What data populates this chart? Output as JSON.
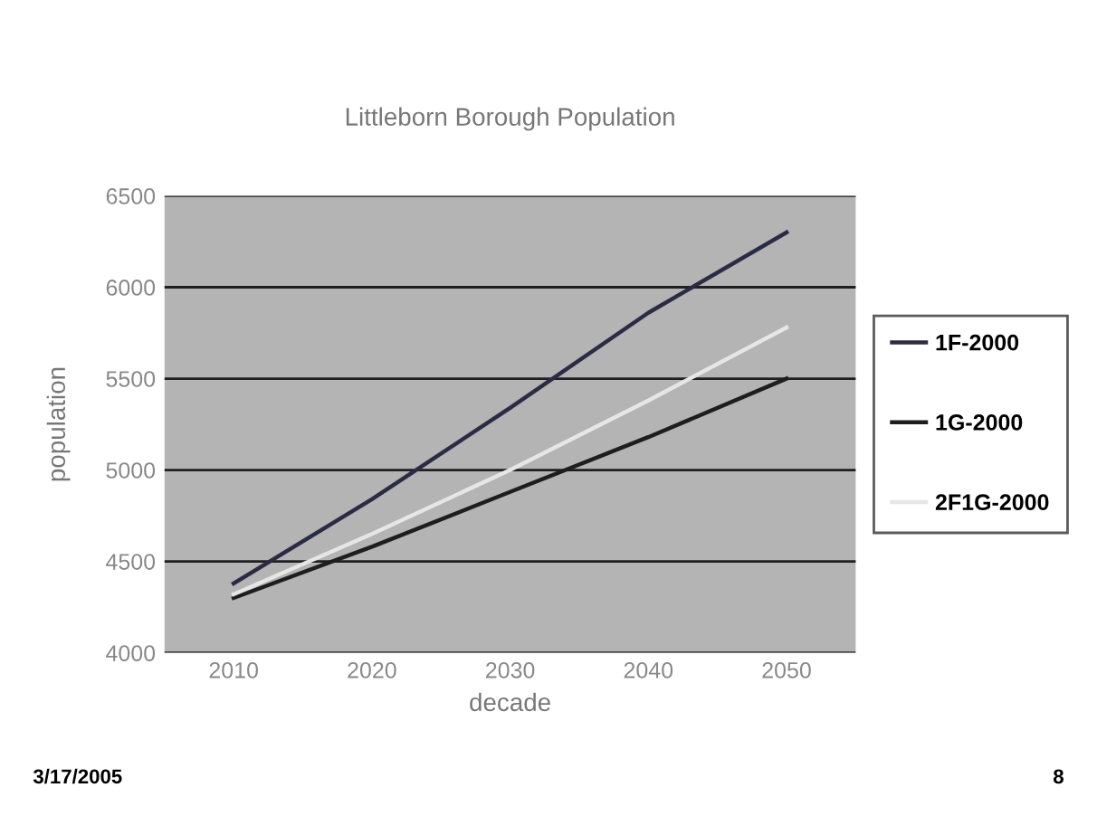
{
  "chart_data": {
    "type": "line",
    "title": "Littleborn Borough Population",
    "xlabel": "decade",
    "ylabel": "population",
    "categories": [
      "2010",
      "2020",
      "2030",
      "2040",
      "2050"
    ],
    "series": [
      {
        "name": "1F-2000",
        "color": "#2b2b45",
        "values": [
          4380,
          4840,
          5340,
          5860,
          6300
        ]
      },
      {
        "name": "1G-2000",
        "color": "#1e1e1e",
        "values": [
          4300,
          4580,
          4880,
          5180,
          5500
        ]
      },
      {
        "name": "2F1G-2000",
        "color": "#e6e6e6",
        "values": [
          4320,
          4650,
          5000,
          5380,
          5780
        ]
      }
    ],
    "ylim": [
      4000,
      6500
    ],
    "yticks": [
      4000,
      4500,
      5000,
      5500,
      6000,
      6500
    ],
    "grid": "y",
    "legend": "right",
    "marker": "none",
    "line_style": "solid",
    "annotations": [
      "3/17/2005",
      "8"
    ]
  }
}
